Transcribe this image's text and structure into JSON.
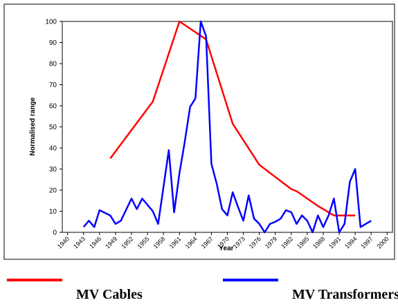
{
  "chart_data": {
    "type": "line",
    "xlabel": "Year",
    "ylabel": "Normalised range",
    "xlim": [
      1939,
      2001
    ],
    "xticks": [
      1940,
      1943,
      1946,
      1949,
      1952,
      1955,
      1958,
      1961,
      1964,
      1967,
      1970,
      1973,
      1976,
      1979,
      1982,
      1985,
      1988,
      1991,
      1994,
      1997,
      2000
    ],
    "ylim": [
      0,
      100
    ],
    "yticks": [
      0,
      10,
      20,
      30,
      40,
      50,
      60,
      70,
      80,
      90,
      100
    ],
    "grid": false,
    "legend": "bottom",
    "series": [
      {
        "name": "MV Cables",
        "color": "#ff0000",
        "x": [
          1948,
          1956,
          1961,
          1966,
          1971,
          1976,
          1982,
          1983,
          1987,
          1990,
          1994
        ],
        "values": [
          35,
          62,
          100,
          91.5,
          51.5,
          32,
          20.5,
          19.5,
          12.5,
          8,
          8
        ]
      },
      {
        "name": "MV Transformers",
        "color": "#0000ff",
        "x": [
          1943,
          1944,
          1945,
          1946,
          1948,
          1949,
          1950,
          1952,
          1953,
          1954,
          1956,
          1957,
          1959,
          1960,
          1961,
          1962,
          1963,
          1964,
          1965,
          1966,
          1967,
          1968,
          1969,
          1970,
          1971,
          1972,
          1973,
          1974,
          1975,
          1976,
          1977,
          1978,
          1979,
          1980,
          1981,
          1982,
          1983,
          1984,
          1985,
          1986,
          1987,
          1988,
          1989,
          1990,
          1991,
          1992,
          1993,
          1994,
          1995,
          1996,
          1997
        ],
        "values": [
          2.5,
          5.5,
          2.5,
          10.5,
          8,
          4,
          5.5,
          16,
          11,
          16,
          10,
          4,
          39,
          9.5,
          28,
          43,
          59.5,
          63.5,
          100,
          93,
          32.5,
          23,
          11,
          8,
          19,
          12,
          5.5,
          17.5,
          6.5,
          4,
          0,
          4,
          5,
          6.5,
          10.5,
          9.5,
          4,
          8,
          5.5,
          0,
          8,
          2.5,
          8,
          16,
          0,
          4,
          24,
          30,
          2.5,
          4,
          5.5
        ]
      }
    ]
  }
}
